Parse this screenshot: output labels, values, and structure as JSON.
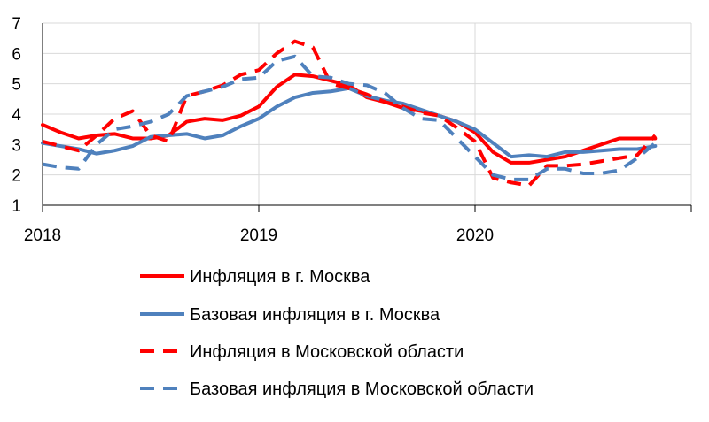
{
  "chart_data": {
    "type": "line",
    "title": "",
    "xlabel": "",
    "ylabel": "",
    "ylim": [
      1,
      7
    ],
    "y_ticks": [
      "1",
      "2",
      "3",
      "4",
      "5",
      "6",
      "7"
    ],
    "x_ticks": [
      "2018",
      "2019",
      "2020"
    ],
    "grid": "horizontal",
    "legend_position": "bottom",
    "x": [
      "2018-01",
      "2018-02",
      "2018-03",
      "2018-04",
      "2018-05",
      "2018-06",
      "2018-07",
      "2018-08",
      "2018-09",
      "2018-10",
      "2018-11",
      "2018-12",
      "2019-01",
      "2019-02",
      "2019-03",
      "2019-04",
      "2019-05",
      "2019-06",
      "2019-07",
      "2019-08",
      "2019-09",
      "2019-10",
      "2019-11",
      "2019-12",
      "2020-01",
      "2020-02",
      "2020-03",
      "2020-04",
      "2020-05",
      "2020-06",
      "2020-07",
      "2020-08",
      "2020-09",
      "2020-10",
      "2020-11",
      "2020-12",
      "2021-01"
    ],
    "series": [
      {
        "name": "Инфляция в г. Москва",
        "color": "#ff0000",
        "dash": "solid",
        "values": [
          3.65,
          3.4,
          3.2,
          3.3,
          3.35,
          3.2,
          3.2,
          3.3,
          3.75,
          3.85,
          3.8,
          3.95,
          4.25,
          4.9,
          5.3,
          5.25,
          5.1,
          4.95,
          4.55,
          4.4,
          4.2,
          4.1,
          3.95,
          3.75,
          3.4,
          2.75,
          2.4,
          2.4,
          2.5,
          2.6,
          2.8,
          3.0,
          3.2,
          3.2,
          3.2,
          null,
          null
        ]
      },
      {
        "name": "Базовая инфляция  в г. Москва",
        "color": "#4f81bd",
        "dash": "solid",
        "values": [
          3.05,
          2.95,
          2.85,
          2.7,
          2.8,
          2.95,
          3.25,
          3.3,
          3.35,
          3.2,
          3.3,
          3.6,
          3.85,
          4.25,
          4.55,
          4.7,
          4.75,
          4.85,
          4.6,
          4.45,
          4.35,
          4.15,
          3.95,
          3.75,
          3.5,
          3.05,
          2.6,
          2.65,
          2.6,
          2.75,
          2.75,
          2.8,
          2.85,
          2.85,
          2.95,
          null,
          null
        ]
      },
      {
        "name": "Инфляция в Московской области",
        "color": "#ff0000",
        "dash": "dashed",
        "values": [
          3.1,
          2.95,
          2.8,
          3.3,
          3.85,
          4.1,
          3.3,
          3.1,
          4.6,
          4.75,
          4.95,
          5.3,
          5.45,
          6.0,
          6.4,
          6.2,
          5.0,
          4.85,
          4.65,
          4.4,
          4.25,
          4.05,
          3.95,
          3.55,
          3.1,
          1.9,
          1.75,
          1.65,
          2.3,
          2.3,
          2.35,
          2.45,
          2.55,
          2.65,
          3.3,
          null,
          null
        ]
      },
      {
        "name": "Базовая инфляция в Московской области",
        "color": "#4f81bd",
        "dash": "dashed",
        "values": [
          2.35,
          2.25,
          2.2,
          3.0,
          3.5,
          3.6,
          3.75,
          4.0,
          4.6,
          4.75,
          4.9,
          5.15,
          5.2,
          5.75,
          5.9,
          5.25,
          5.2,
          5.0,
          4.95,
          4.7,
          4.2,
          3.85,
          3.8,
          3.2,
          2.6,
          2.0,
          1.85,
          1.85,
          2.2,
          2.2,
          2.05,
          2.05,
          2.15,
          2.55,
          3.05,
          null,
          null
        ]
      }
    ]
  }
}
